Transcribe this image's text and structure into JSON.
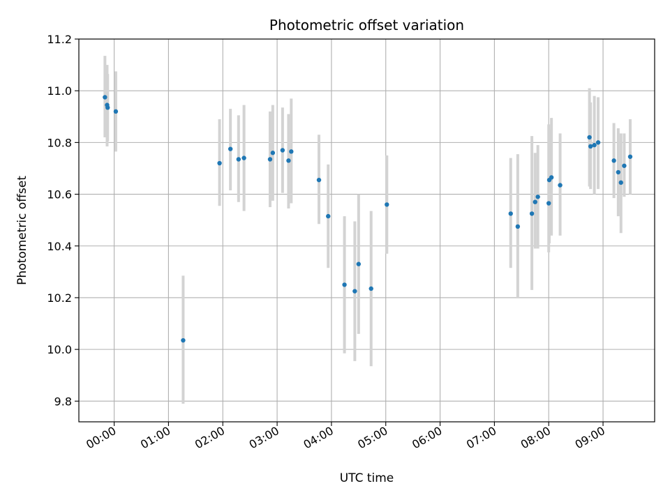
{
  "chart_data": {
    "type": "scatter",
    "title": "Photometric offset variation",
    "xlabel": "UTC time",
    "ylabel": "Photometric offset",
    "x_unit": "time of day (UTC), decimal hours; negative values precede 00:00",
    "xlim": [
      -0.65,
      9.95
    ],
    "ylim": [
      9.72,
      11.2
    ],
    "grid": true,
    "legend": "none",
    "x_ticks": [
      {
        "value": 0,
        "label": "00:00"
      },
      {
        "value": 1,
        "label": "01:00"
      },
      {
        "value": 2,
        "label": "02:00"
      },
      {
        "value": 3,
        "label": "03:00"
      },
      {
        "value": 4,
        "label": "04:00"
      },
      {
        "value": 5,
        "label": "05:00"
      },
      {
        "value": 6,
        "label": "06:00"
      },
      {
        "value": 7,
        "label": "07:00"
      },
      {
        "value": 8,
        "label": "08:00"
      },
      {
        "value": 9,
        "label": "09:00"
      }
    ],
    "y_ticks": [
      {
        "value": 9.8,
        "label": "9.8"
      },
      {
        "value": 10.0,
        "label": "10.0"
      },
      {
        "value": 10.2,
        "label": "10.2"
      },
      {
        "value": 10.4,
        "label": "10.4"
      },
      {
        "value": 10.6,
        "label": "10.6"
      },
      {
        "value": 10.8,
        "label": "10.8"
      },
      {
        "value": 11.0,
        "label": "11.0"
      },
      {
        "value": 11.2,
        "label": "11.2"
      }
    ],
    "colors": {
      "point": "#1f77b4",
      "errorbar": "#d3d3d3",
      "grid": "#b0b0b0",
      "axis": "#000000"
    },
    "series": [
      {
        "points": [
          {
            "x": -0.17,
            "y": 10.975,
            "yerr_low": 10.82,
            "yerr_high": 11.135
          },
          {
            "x": -0.13,
            "y": 10.945,
            "yerr_low": 10.785,
            "yerr_high": 11.1
          },
          {
            "x": -0.12,
            "y": 10.935,
            "yerr_low": 10.805,
            "yerr_high": 11.065
          },
          {
            "x": 0.03,
            "y": 10.92,
            "yerr_low": 10.765,
            "yerr_high": 11.075
          },
          {
            "x": 1.27,
            "y": 10.035,
            "yerr_low": 9.79,
            "yerr_high": 10.285
          },
          {
            "x": 1.94,
            "y": 10.72,
            "yerr_low": 10.555,
            "yerr_high": 10.89
          },
          {
            "x": 2.14,
            "y": 10.775,
            "yerr_low": 10.615,
            "yerr_high": 10.93
          },
          {
            "x": 2.29,
            "y": 10.735,
            "yerr_low": 10.57,
            "yerr_high": 10.905
          },
          {
            "x": 2.39,
            "y": 10.74,
            "yerr_low": 10.535,
            "yerr_high": 10.945
          },
          {
            "x": 2.87,
            "y": 10.735,
            "yerr_low": 10.55,
            "yerr_high": 10.92
          },
          {
            "x": 2.92,
            "y": 10.76,
            "yerr_low": 10.575,
            "yerr_high": 10.945
          },
          {
            "x": 3.1,
            "y": 10.77,
            "yerr_low": 10.605,
            "yerr_high": 10.935
          },
          {
            "x": 3.21,
            "y": 10.73,
            "yerr_low": 10.545,
            "yerr_high": 10.91
          },
          {
            "x": 3.26,
            "y": 10.765,
            "yerr_low": 10.565,
            "yerr_high": 10.97
          },
          {
            "x": 3.77,
            "y": 10.655,
            "yerr_low": 10.485,
            "yerr_high": 10.83
          },
          {
            "x": 3.94,
            "y": 10.515,
            "yerr_low": 10.315,
            "yerr_high": 10.715
          },
          {
            "x": 4.24,
            "y": 10.25,
            "yerr_low": 9.985,
            "yerr_high": 10.515
          },
          {
            "x": 4.43,
            "y": 10.225,
            "yerr_low": 9.955,
            "yerr_high": 10.495
          },
          {
            "x": 4.5,
            "y": 10.33,
            "yerr_low": 10.06,
            "yerr_high": 10.6
          },
          {
            "x": 4.73,
            "y": 10.235,
            "yerr_low": 9.935,
            "yerr_high": 10.535
          },
          {
            "x": 5.02,
            "y": 10.56,
            "yerr_low": 10.37,
            "yerr_high": 10.75
          },
          {
            "x": 7.3,
            "y": 10.525,
            "yerr_low": 10.315,
            "yerr_high": 10.74
          },
          {
            "x": 7.43,
            "y": 10.475,
            "yerr_low": 10.2,
            "yerr_high": 10.755
          },
          {
            "x": 7.69,
            "y": 10.525,
            "yerr_low": 10.23,
            "yerr_high": 10.825
          },
          {
            "x": 7.75,
            "y": 10.57,
            "yerr_low": 10.39,
            "yerr_high": 10.76
          },
          {
            "x": 7.8,
            "y": 10.59,
            "yerr_low": 10.39,
            "yerr_high": 10.79
          },
          {
            "x": 8.0,
            "y": 10.565,
            "yerr_low": 10.375,
            "yerr_high": 10.87
          },
          {
            "x": 8.01,
            "y": 10.655,
            "yerr_low": 10.41,
            "yerr_high": 10.85
          },
          {
            "x": 8.05,
            "y": 10.665,
            "yerr_low": 10.44,
            "yerr_high": 10.895
          },
          {
            "x": 8.21,
            "y": 10.635,
            "yerr_low": 10.44,
            "yerr_high": 10.835
          },
          {
            "x": 8.75,
            "y": 10.82,
            "yerr_low": 10.63,
            "yerr_high": 11.01
          },
          {
            "x": 8.77,
            "y": 10.785,
            "yerr_low": 10.62,
            "yerr_high": 10.955
          },
          {
            "x": 8.84,
            "y": 10.79,
            "yerr_low": 10.6,
            "yerr_high": 10.98
          },
          {
            "x": 8.91,
            "y": 10.8,
            "yerr_low": 10.62,
            "yerr_high": 10.975
          },
          {
            "x": 9.2,
            "y": 10.73,
            "yerr_low": 10.585,
            "yerr_high": 10.875
          },
          {
            "x": 9.28,
            "y": 10.685,
            "yerr_low": 10.515,
            "yerr_high": 10.855
          },
          {
            "x": 9.33,
            "y": 10.645,
            "yerr_low": 10.45,
            "yerr_high": 10.835
          },
          {
            "x": 9.39,
            "y": 10.71,
            "yerr_low": 10.59,
            "yerr_high": 10.835
          },
          {
            "x": 9.5,
            "y": 10.745,
            "yerr_low": 10.6,
            "yerr_high": 10.89
          }
        ]
      }
    ]
  }
}
